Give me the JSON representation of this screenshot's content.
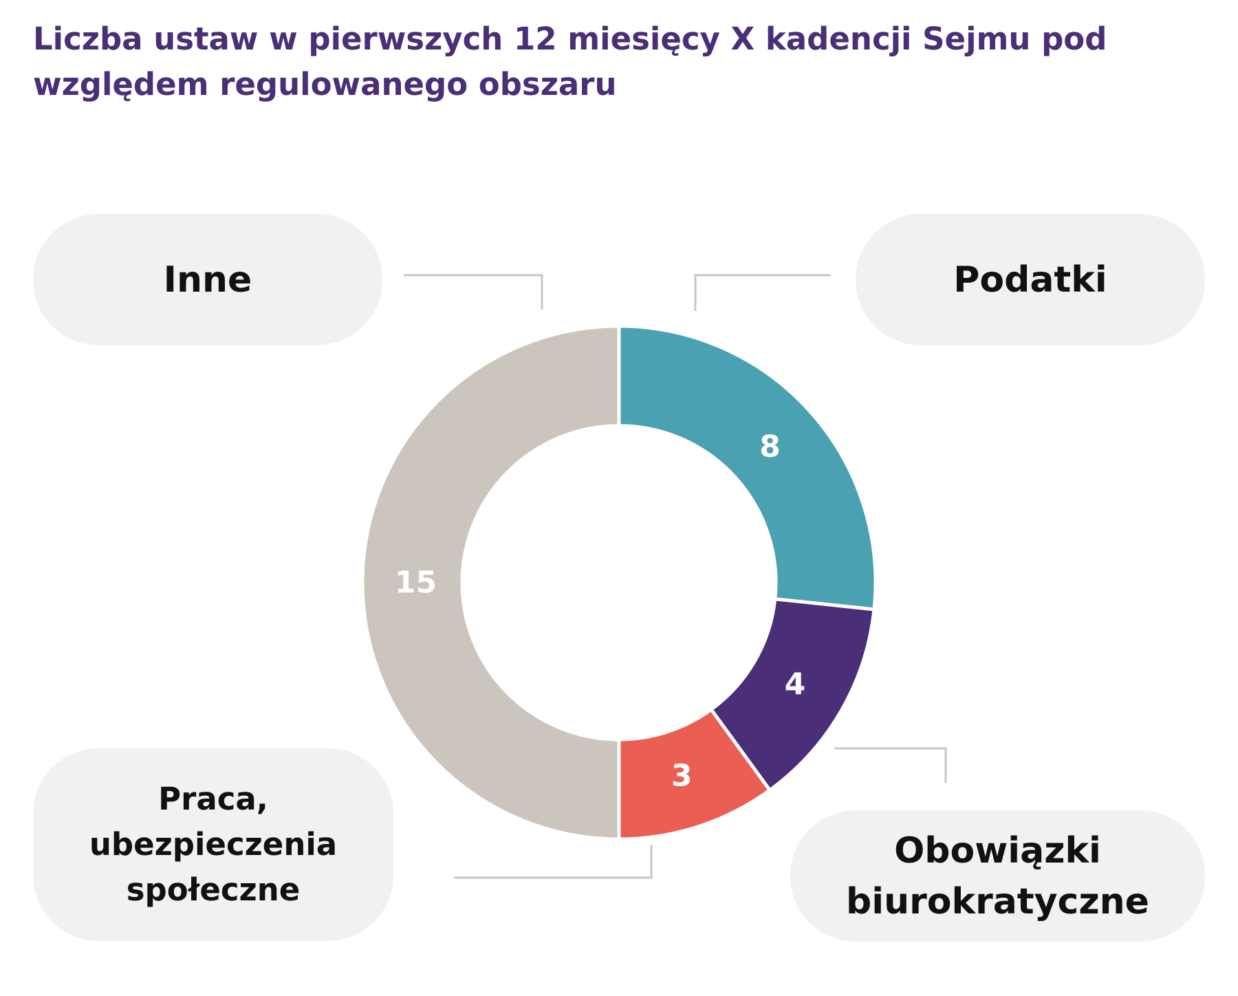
{
  "title": "Liczba ustaw w pierwszych 12 miesięcy X kadencji Sejmu pod względem regulowanego obszaru",
  "chart_data": {
    "type": "pie",
    "variant": "donut",
    "title": "Liczba ustaw w pierwszych 12 miesięcy X kadencji Sejmu pod względem regulowanego obszaru",
    "categories": [
      "Podatki",
      "Obowiązki biurokratyczne",
      "Praca, ubezpieczenia społeczne",
      "Inne"
    ],
    "values": [
      8,
      4,
      3,
      15
    ],
    "colors": [
      "#4aa1b2",
      "#4a2e78",
      "#eb5e53",
      "#cbc5bd"
    ],
    "data_label_color": "#ffffff",
    "legend": "callouts"
  },
  "callouts": {
    "inne": "Inne",
    "podatki": "Podatki",
    "praca": [
      "Praca,",
      "ubezpieczenia",
      "społeczne"
    ],
    "obowiazki": [
      "Obowiązki",
      "biurokratyczne"
    ]
  },
  "colors": {
    "title": "#4a2e78",
    "callout_bg": "#f2f1ef",
    "leader_line": "#cbc5bd"
  }
}
